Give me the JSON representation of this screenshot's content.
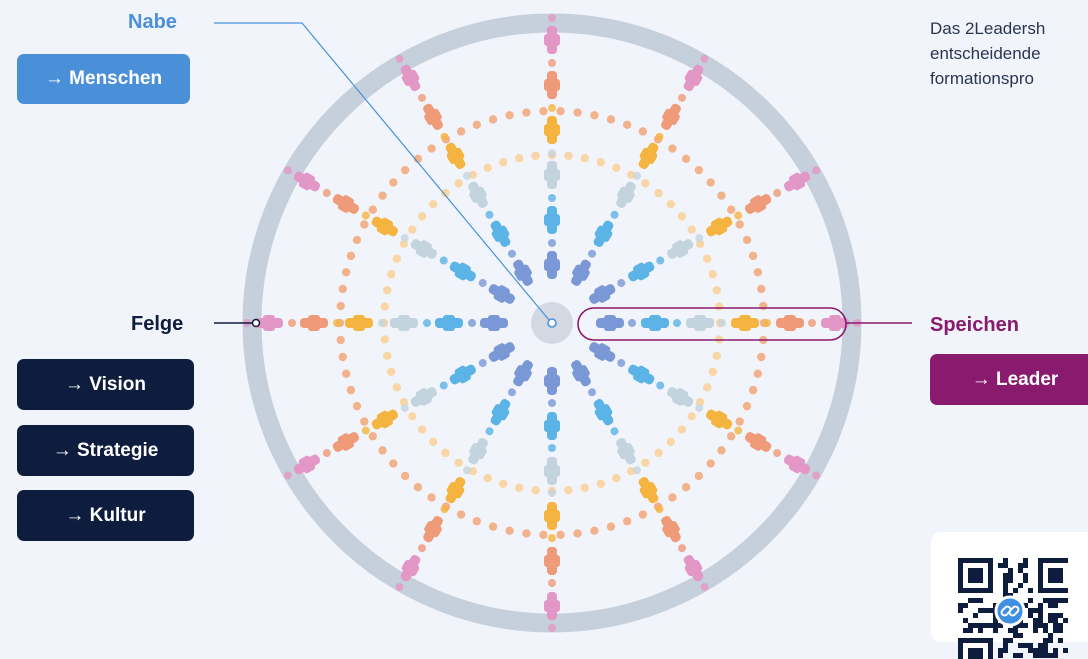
{
  "labels": {
    "hub": "Nabe",
    "rim": "Felge",
    "spokes": "Speichen"
  },
  "buttons": {
    "hub": "→ Menschen",
    "rim": [
      "→ Vision",
      "→ Strategie",
      "→ Kultur"
    ],
    "spokes": "→ Leader"
  },
  "description": "Das 2Leadersh\nentscheidende\nformationspro",
  "colors": {
    "hub_accent": "#4a90d9",
    "rim_accent": "#0e1c3e",
    "spokes_accent": "#8a1a6e",
    "rim_ring": "#c6cfdc"
  },
  "icons": {
    "qr": "qr-code-icon",
    "link": "link-icon"
  }
}
